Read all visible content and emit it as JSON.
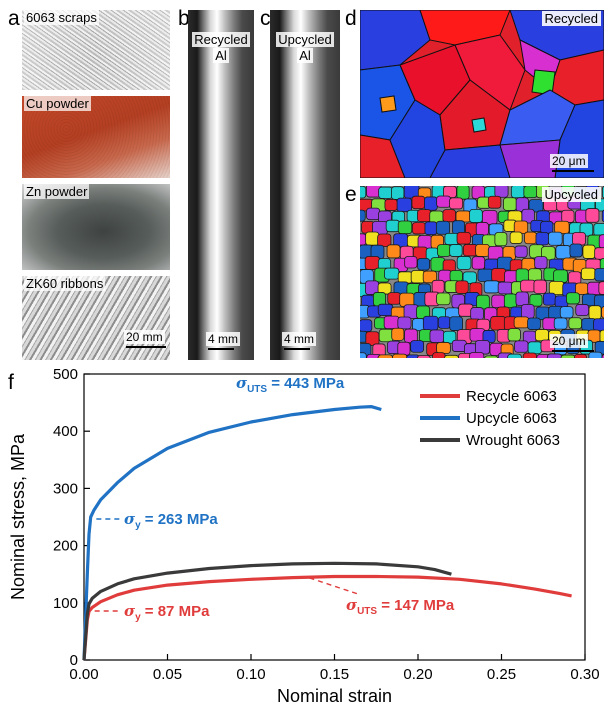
{
  "panels": {
    "a": {
      "label": "a",
      "items": [
        {
          "caption": "6063 scraps"
        },
        {
          "caption": "Cu powder"
        },
        {
          "caption": "Zn powder"
        },
        {
          "caption": "ZK60 ribbons"
        }
      ],
      "scale": "20 mm"
    },
    "b": {
      "label": "b",
      "caption_line1": "Recycled",
      "caption_line2": "Al",
      "scale": "4 mm"
    },
    "c": {
      "label": "c",
      "caption_line1": "Upcycled",
      "caption_line2": "Al",
      "scale": "4 mm"
    },
    "d": {
      "label": "d",
      "caption": "Recycled",
      "scale": "20 μm"
    },
    "e": {
      "label": "e",
      "caption": "Upcycled",
      "scale": "20 μm"
    },
    "f": {
      "label": "f"
    }
  },
  "chart_data": {
    "type": "line",
    "xlabel": "Nominal strain",
    "ylabel": "Nominal stress, MPa",
    "xlim": [
      0,
      0.3
    ],
    "ylim": [
      0,
      500
    ],
    "xticks": [
      0.0,
      0.05,
      0.1,
      0.15,
      0.2,
      0.25,
      0.3
    ],
    "xtick_labels": [
      "0.00",
      "0.05",
      "0.10",
      "0.15",
      "0.20",
      "0.25",
      "0.30"
    ],
    "yticks": [
      0,
      100,
      200,
      300,
      400,
      500
    ],
    "ytick_labels": [
      "0",
      "100",
      "200",
      "300",
      "400",
      "500"
    ],
    "legend_position": "top-right",
    "series": [
      {
        "name": "Recycle 6063",
        "color": "#e03c3c",
        "points": [
          [
            0,
            0
          ],
          [
            0.002,
            70
          ],
          [
            0.003,
            85
          ],
          [
            0.005,
            92
          ],
          [
            0.01,
            102
          ],
          [
            0.02,
            114
          ],
          [
            0.03,
            122
          ],
          [
            0.05,
            131
          ],
          [
            0.075,
            137
          ],
          [
            0.1,
            141
          ],
          [
            0.125,
            144
          ],
          [
            0.15,
            146
          ],
          [
            0.175,
            146
          ],
          [
            0.2,
            145
          ],
          [
            0.225,
            141
          ],
          [
            0.25,
            133
          ],
          [
            0.27,
            124
          ],
          [
            0.285,
            116
          ],
          [
            0.292,
            112
          ]
        ]
      },
      {
        "name": "Upcycle 6063",
        "color": "#1f72c4",
        "points": [
          [
            0,
            0
          ],
          [
            0.002,
            150
          ],
          [
            0.003,
            220
          ],
          [
            0.004,
            250
          ],
          [
            0.006,
            262
          ],
          [
            0.01,
            280
          ],
          [
            0.02,
            310
          ],
          [
            0.03,
            335
          ],
          [
            0.05,
            370
          ],
          [
            0.075,
            398
          ],
          [
            0.1,
            416
          ],
          [
            0.125,
            429
          ],
          [
            0.15,
            438
          ],
          [
            0.165,
            442
          ],
          [
            0.172,
            443
          ],
          [
            0.178,
            438
          ]
        ]
      },
      {
        "name": "Wrought 6063",
        "color": "#3a3a3a",
        "points": [
          [
            0,
            0
          ],
          [
            0.002,
            80
          ],
          [
            0.003,
            98
          ],
          [
            0.005,
            108
          ],
          [
            0.01,
            120
          ],
          [
            0.02,
            133
          ],
          [
            0.03,
            142
          ],
          [
            0.05,
            152
          ],
          [
            0.075,
            160
          ],
          [
            0.1,
            165
          ],
          [
            0.125,
            168
          ],
          [
            0.15,
            169
          ],
          [
            0.175,
            168
          ],
          [
            0.2,
            163
          ],
          [
            0.21,
            158
          ],
          [
            0.22,
            150
          ]
        ]
      }
    ],
    "annotations": [
      {
        "symbol": "σ",
        "sub": "UTS",
        "text": "= 443 MPa",
        "color": "#1f72c4",
        "x": 0.172,
        "y": 443
      },
      {
        "symbol": "σ",
        "sub": "y",
        "text": "= 263 MPa",
        "color": "#1f72c4",
        "x": 0.005,
        "y": 263
      },
      {
        "symbol": "σ",
        "sub": "y",
        "text": "= 87 MPa",
        "color": "#e03c3c",
        "x": 0.004,
        "y": 87
      },
      {
        "symbol": "σ",
        "sub": "UTS",
        "text": "= 147 MPa",
        "color": "#e03c3c",
        "x": 0.16,
        "y": 147
      }
    ]
  }
}
